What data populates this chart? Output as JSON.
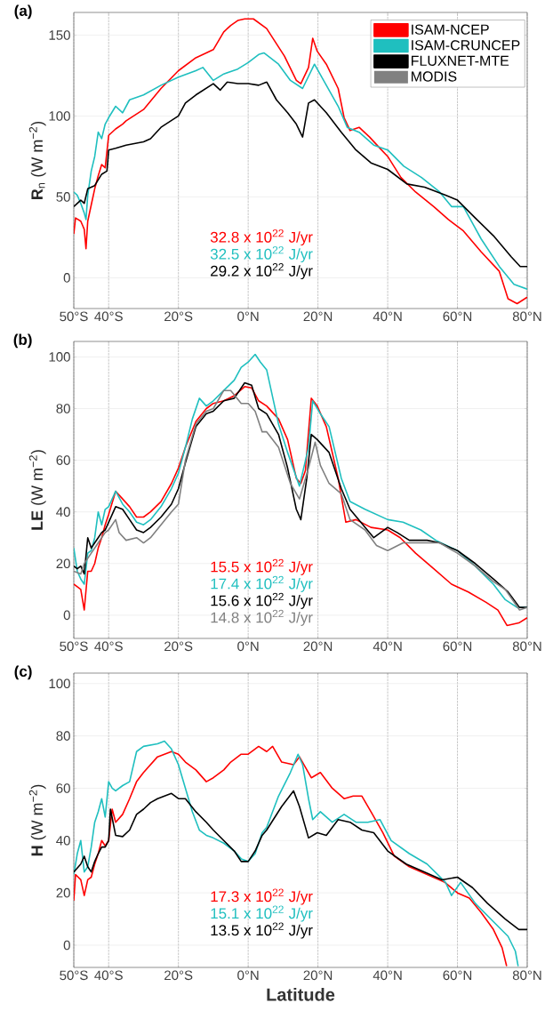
{
  "chart_data": [
    {
      "type": "line",
      "title": "(a)",
      "ylabel": "**R**$_{n}$ (W m$^{−2}$)",
      "xlim": [
        -50,
        80
      ],
      "ylim": [
        -19,
        164
      ],
      "xticks": [
        {
          "value": -50,
          "label": "50°S"
        },
        {
          "value": -40,
          "label": "40°S"
        },
        {
          "value": -20,
          "label": "20°S"
        },
        {
          "value": 0,
          "label": "0°N"
        },
        {
          "value": 20,
          "label": "20°N"
        },
        {
          "value": 40,
          "label": "40°N"
        },
        {
          "value": 60,
          "label": "60°N"
        },
        {
          "value": 80,
          "label": "80°N"
        }
      ],
      "yticks": [
        0,
        50,
        100,
        150
      ],
      "grid": true,
      "legend": "top right",
      "series": [
        {
          "name": "ISAM-NCEP",
          "color": "#ff0000",
          "x": [
            -50,
            -49.5,
            -48,
            -47,
            -46.5,
            -46,
            -45,
            -44,
            -43,
            -42,
            -41,
            -40.5,
            -40,
            -38,
            -36,
            -35,
            -30,
            -25,
            -20,
            -15,
            -12,
            -10,
            -7,
            -5,
            -3,
            -1,
            1.5,
            5.3,
            10.4,
            13.8,
            15.1,
            17.3,
            18.5,
            19.8,
            22.4,
            25.8,
            27.5,
            29.2,
            31.8,
            34.8,
            37.8,
            40,
            43.8,
            48,
            53.2,
            57.4,
            61.7,
            66.8,
            72,
            74.5,
            77.1,
            80
          ],
          "values": [
            27,
            37,
            35,
            30,
            18,
            35,
            45,
            55,
            63,
            70,
            68,
            78,
            88,
            92,
            95,
            97,
            104,
            117,
            128,
            136,
            139,
            141,
            152,
            156,
            159,
            160,
            160,
            154,
            137,
            122,
            120,
            130,
            148,
            140,
            132,
            117,
            99,
            91,
            93,
            87,
            80,
            75,
            62,
            53,
            44,
            36,
            29,
            16,
            4,
            -13,
            -16,
            -12
          ]
        },
        {
          "name": "ISAM-CRUNCEP",
          "color": "#1fbfbf",
          "x": [
            -50,
            -49,
            -48,
            -47,
            -46.5,
            -46,
            -45,
            -44,
            -43,
            -42,
            -41,
            -40,
            -38,
            -36,
            -34,
            -30,
            -25,
            -20,
            -15,
            -13,
            -10,
            -7,
            -3,
            0,
            3,
            4.5,
            8.7,
            12.1,
            15.6,
            19,
            22.4,
            25.8,
            28.4,
            31.8,
            36,
            40,
            44.6,
            49.7,
            54.9,
            58.3,
            61.7,
            66.8,
            72,
            76.2,
            80
          ],
          "values": [
            53,
            51,
            46,
            40,
            36,
            51,
            66,
            75,
            90,
            86,
            95,
            99,
            106,
            102,
            110,
            113,
            119,
            124,
            128,
            130,
            122,
            126,
            129,
            133,
            138,
            139,
            132,
            122,
            117,
            132,
            119,
            106,
            93,
            90,
            82,
            79,
            69,
            62,
            53,
            44,
            44,
            24,
            7,
            -4,
            -7
          ]
        },
        {
          "name": "FLUXNET-MTE",
          "color": "#000000",
          "x": [
            -50,
            -48,
            -47,
            -46,
            -44,
            -42,
            -40.5,
            -40,
            -38,
            -35,
            -30,
            -28,
            -25,
            -20,
            -18,
            -15,
            -10,
            -8,
            -6,
            -3,
            0,
            3,
            5.3,
            8.1,
            11.3,
            13.8,
            15.6,
            17.3,
            19,
            22.4,
            26.7,
            30.9,
            35.2,
            40,
            45.5,
            50.6,
            56.6,
            60,
            65.1,
            70.3,
            75.4,
            78,
            80
          ],
          "values": [
            44,
            48,
            46,
            55,
            57,
            64,
            66,
            79,
            80,
            82,
            84,
            86,
            93,
            100,
            108,
            113,
            120,
            116,
            121,
            120,
            120,
            119,
            121,
            110,
            102,
            95,
            87,
            108,
            110,
            102,
            90,
            79,
            71,
            67,
            58,
            56,
            51,
            48,
            37,
            26,
            13,
            7,
            7
          ]
        },
        {
          "name": "MODIS",
          "color": "#808080"
        }
      ],
      "annotations": [
        "32.8  x 10$^{22}$ J/yr",
        "32.5  x 10$^{22}$ J/yr",
        "29.2  x 10$^{22}$ J/yr"
      ]
    },
    {
      "type": "line",
      "title": "(b)",
      "ylabel": "**LE** (W m$^{−2}$)",
      "xlim": [
        -50,
        80
      ],
      "ylim": [
        -9,
        106
      ],
      "xticks": [
        {
          "value": -50,
          "label": "50°S"
        },
        {
          "value": -40,
          "label": "40°S"
        },
        {
          "value": -20,
          "label": "20°S"
        },
        {
          "value": 0,
          "label": "0°N"
        },
        {
          "value": 20,
          "label": "20°N"
        },
        {
          "value": 40,
          "label": "40°N"
        },
        {
          "value": 60,
          "label": "60°N"
        },
        {
          "value": 80,
          "label": "80°N"
        }
      ],
      "yticks": [
        0,
        20,
        40,
        60,
        80,
        100
      ],
      "grid": true,
      "series": [
        {
          "color": "#ff0000",
          "x": [
            -50,
            -49,
            -48,
            -47,
            -46,
            -45,
            -44,
            -43,
            -42,
            -41,
            -40,
            -38,
            -36,
            -34,
            -32,
            -30,
            -28,
            -25,
            -22,
            -20,
            -18,
            -15,
            -12,
            -10,
            -7,
            -4,
            -1,
            1,
            3,
            5.3,
            8.7,
            11.3,
            13.8,
            15.1,
            16.4,
            18.1,
            19.8,
            22.4,
            25.8,
            28,
            30.9,
            35.2,
            40,
            43.6,
            48,
            53.2,
            58.3,
            63.1,
            68.2,
            71.6,
            74.2,
            77.6,
            80
          ],
          "values": [
            12,
            11,
            10,
            2,
            17,
            17,
            20,
            26,
            30,
            35,
            39,
            48,
            45,
            42,
            38,
            38,
            40,
            44,
            51,
            57,
            65,
            75,
            80,
            82,
            83,
            85,
            88.5,
            88,
            83,
            81,
            76,
            68,
            53,
            51,
            56,
            84,
            81,
            73,
            53,
            36,
            37,
            34,
            33,
            30,
            24,
            18,
            12,
            9,
            5,
            2,
            -4,
            -3,
            -1
          ]
        },
        {
          "color": "#1fbfbf",
          "x": [
            -50,
            -49,
            -48,
            -47,
            -46,
            -45,
            -44,
            -43,
            -42,
            -41,
            -40,
            -38,
            -36,
            -34,
            -32,
            -30,
            -28,
            -25,
            -22,
            -20,
            -18,
            -16,
            -14,
            -12,
            -10,
            -7,
            -4,
            -2,
            0,
            2,
            3.5,
            5.3,
            8.7,
            11.3,
            14.7,
            17.3,
            18.5,
            20.7,
            23.2,
            26.7,
            29.2,
            33.5,
            40,
            44.4,
            49.5,
            53.8,
            60,
            65.1,
            70.3,
            73.7,
            77.1,
            80
          ],
          "values": [
            26,
            17,
            14,
            12,
            24,
            25,
            30,
            40,
            35,
            41,
            42,
            48,
            43,
            40,
            36,
            35,
            37,
            42,
            49,
            55,
            65,
            76,
            84,
            81,
            83,
            87,
            91,
            96,
            98,
            101,
            98,
            95,
            74,
            63,
            50,
            65,
            83,
            78,
            73,
            53,
            44,
            41,
            37,
            36,
            33,
            29,
            25,
            19,
            12,
            6,
            3,
            3
          ]
        },
        {
          "color": "#000000",
          "x": [
            -50,
            -49,
            -48,
            -47,
            -46,
            -45,
            -44,
            -43,
            -42,
            -41,
            -40,
            -38,
            -36,
            -34,
            -32,
            -30,
            -28,
            -25,
            -22,
            -20,
            -18,
            -15,
            -12,
            -10,
            -7,
            -4,
            -1,
            1,
            3,
            5.3,
            8.7,
            11.3,
            13.8,
            15.1,
            16.8,
            18.1,
            19.8,
            23.2,
            26.7,
            29.2,
            33.5,
            36,
            40,
            42.7,
            46.2,
            51.3,
            54.9,
            60,
            65.1,
            70.3,
            74.5,
            77.8,
            80
          ],
          "values": [
            19,
            18,
            19,
            16,
            30,
            26,
            28,
            30,
            32,
            33,
            36,
            42,
            41,
            37,
            33,
            32,
            34,
            38,
            43,
            49,
            59,
            73,
            78,
            79,
            83,
            84,
            90,
            89,
            80,
            78,
            70,
            57,
            41,
            37,
            53,
            70,
            68,
            63,
            49,
            41,
            34,
            30,
            34,
            32,
            29,
            29,
            28,
            25,
            20,
            14,
            9,
            3,
            3
          ]
        },
        {
          "color": "#808080",
          "x": [
            -50,
            -48,
            -47,
            -45,
            -43,
            -41,
            -40,
            -38,
            -37,
            -35,
            -32,
            -30,
            -28,
            -25,
            -22,
            -20,
            -18,
            -15,
            -12,
            -10,
            -7,
            -5,
            -2,
            0,
            2,
            4,
            5.3,
            8.7,
            12.1,
            14.7,
            17.3,
            19.2,
            20.7,
            23.2,
            26.7,
            29.2,
            33.5,
            36.8,
            40,
            44.4,
            49.5,
            54.9,
            60,
            65.1,
            70.3,
            73.7,
            77.8,
            80
          ],
          "values": [
            17,
            16,
            20,
            24,
            28,
            32,
            33,
            37,
            32,
            29,
            30,
            28,
            30,
            35,
            40,
            43,
            60,
            74,
            79,
            80,
            87,
            87,
            82,
            82,
            79,
            71,
            71,
            65,
            51,
            45,
            57,
            67,
            58,
            51,
            47,
            37,
            33,
            27,
            25,
            28,
            28,
            28,
            24,
            19,
            13,
            10,
            2,
            3
          ]
        }
      ],
      "annotations": [
        "15.5  x 10$^{22}$ J/yr",
        "17.4  x 10$^{22}$ J/yr",
        "15.6  x 10$^{22}$ J/yr",
        "14.8  x 10$^{22}$ J/yr"
      ]
    },
    {
      "type": "line",
      "title": "(c)",
      "ylabel": "**H** (W m$^{−2}$)",
      "xlabel": "Latitude",
      "xlim": [
        -50,
        80
      ],
      "ylim": [
        -8.5,
        104
      ],
      "xticks": [
        {
          "value": -50,
          "label": "50°S"
        },
        {
          "value": -40,
          "label": "40°S"
        },
        {
          "value": -20,
          "label": "20°S"
        },
        {
          "value": 0,
          "label": "0°N"
        },
        {
          "value": 20,
          "label": "20°N"
        },
        {
          "value": 40,
          "label": "40°N"
        },
        {
          "value": 60,
          "label": "60°N"
        },
        {
          "value": 80,
          "label": "80°N"
        }
      ],
      "yticks": [
        0,
        20,
        40,
        60,
        80,
        100
      ],
      "grid": true,
      "series": [
        {
          "color": "#ff0000",
          "x": [
            -50,
            -49.5,
            -48,
            -47,
            -46,
            -45,
            -44,
            -43,
            -42,
            -41,
            -40,
            -39,
            -38,
            -36,
            -34,
            -32,
            -30,
            -28,
            -26,
            -24,
            -22,
            -20,
            -18,
            -15,
            -12,
            -10,
            -7,
            -5,
            -2,
            0,
            3,
            5.3,
            7,
            9.6,
            13,
            14.7,
            18.1,
            20.7,
            24.1,
            27.5,
            30.1,
            32.6,
            35.2,
            38.6,
            41.9,
            46.2,
            51.3,
            56.4,
            60,
            63.4,
            66.8,
            70.3,
            72.8,
            74.1
          ],
          "values": [
            17,
            27,
            25,
            19,
            25,
            26,
            31,
            35,
            40,
            38,
            40,
            52,
            47,
            50,
            56,
            62.5,
            66,
            69,
            72,
            73,
            74,
            73,
            70,
            67,
            62.5,
            64,
            67,
            70,
            73,
            73,
            76,
            74,
            76,
            70,
            69,
            72,
            64,
            66,
            60,
            56,
            57,
            57,
            51,
            43,
            34,
            30,
            27,
            24,
            20,
            18,
            12.5,
            6,
            -1,
            -8
          ]
        },
        {
          "color": "#1fbfbf",
          "x": [
            -50,
            -49,
            -48,
            -47,
            -46,
            -45,
            -44,
            -43,
            -42,
            -41,
            -40,
            -39,
            -38,
            -36,
            -34,
            -32,
            -30,
            -26,
            -24,
            -22,
            -20,
            -18,
            -16,
            -14,
            -12,
            -10,
            -7,
            -4,
            -2,
            0,
            2,
            4,
            5.3,
            8.7,
            12.1,
            14.3,
            15.6,
            17.3,
            18.5,
            20.7,
            24.1,
            27.5,
            30.9,
            34.3,
            37.8,
            41,
            46.2,
            51.3,
            56.6,
            58.3,
            60.9,
            65.1,
            70.3,
            74.5,
            76.6,
            77.4
          ],
          "values": [
            27,
            35,
            40,
            28,
            30,
            37.5,
            47,
            51,
            56,
            49,
            62.5,
            60,
            59,
            61,
            62.5,
            74,
            76,
            77,
            78,
            75,
            69,
            60,
            51,
            44,
            42,
            41,
            39,
            36,
            33,
            32,
            35,
            43,
            45,
            57,
            66,
            73,
            69,
            56,
            48,
            51,
            47,
            50,
            47,
            47,
            48,
            40,
            35,
            31,
            24,
            19,
            24,
            16,
            9,
            3.4,
            -2.3,
            -8
          ]
        },
        {
          "color": "#000000",
          "x": [
            -50,
            -48,
            -47,
            -46,
            -45,
            -44,
            -43,
            -42,
            -41,
            -40,
            -39.5,
            -38,
            -36,
            -34,
            -32,
            -30,
            -28,
            -26,
            -24,
            -22,
            -20,
            -18,
            -15,
            -12,
            -10,
            -7,
            -4,
            -2,
            0,
            2,
            4,
            5.3,
            9.6,
            13,
            14.7,
            17.3,
            19.8,
            22.4,
            25.8,
            29.2,
            32.6,
            36,
            40,
            45.3,
            50.4,
            55.6,
            60,
            64.3,
            68.6,
            73.7,
            77.6,
            80
          ],
          "values": [
            28,
            31,
            34,
            30,
            28,
            32,
            35,
            37.5,
            37.5,
            40,
            52,
            42,
            41.5,
            44,
            50,
            52,
            54.5,
            56,
            57,
            58,
            56,
            56,
            51,
            47,
            44,
            40,
            36,
            32,
            32,
            36,
            42,
            44,
            53,
            59,
            53,
            41,
            43,
            42,
            48,
            47,
            44,
            43,
            36,
            31,
            28,
            25,
            26,
            22,
            16,
            10,
            6,
            6
          ]
        }
      ],
      "annotations": [
        "17.3  x 10$^{22}$ J/yr",
        "15.1  x 10$^{22}$ J/yr",
        "13.5  x 10$^{22}$ J/yr"
      ]
    }
  ]
}
